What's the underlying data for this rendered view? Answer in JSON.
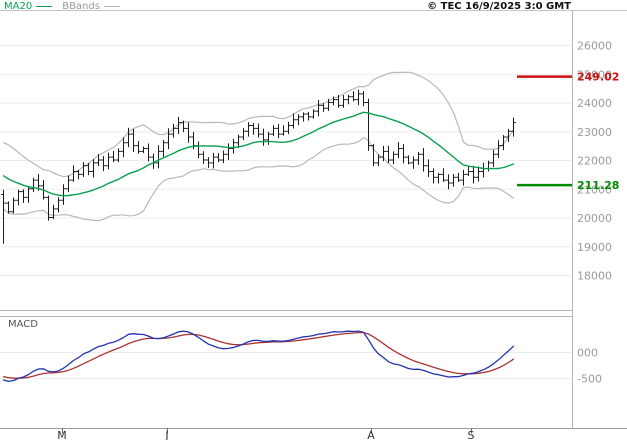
{
  "header": {
    "copyright": "© TEC 16/9/2025 3:0 GMT"
  },
  "legend": {
    "ma20": "MA20",
    "bbands": "BBands"
  },
  "colors": {
    "ma20": "#0aa04f",
    "bbands": "#b9b9b9",
    "legend_bbands": "#9a9a9a",
    "bars": "#1c1c1c",
    "resistance": "#cc1111",
    "support": "#008a00",
    "macd_line": "#2433b0",
    "macd_signal": "#aa3333",
    "axis_text": "#9a9a9a",
    "month_text": "#333333",
    "grid": "#ededed",
    "border": "#b5b5b5"
  },
  "chart_data": {
    "type": "candlestick",
    "title": "",
    "panels": [
      "price",
      "macd"
    ],
    "price": {
      "y_ticks": [
        26000,
        25000,
        24000,
        23000,
        22000,
        21000,
        20000,
        19000,
        18000
      ],
      "ylim": [
        16800,
        27200
      ],
      "overlays": [
        "MA20",
        "Bollinger Bands (20,2)"
      ],
      "closes": [
        20500,
        20200,
        20600,
        20900,
        20700,
        21000,
        21300,
        21100,
        20700,
        20000,
        20300,
        20600,
        21000,
        21300,
        21600,
        21500,
        21800,
        21600,
        21900,
        22000,
        21800,
        22100,
        22000,
        22300,
        22600,
        22900,
        22500,
        22300,
        22400,
        22100,
        21900,
        22300,
        22600,
        22900,
        23100,
        23300,
        23100,
        22800,
        22500,
        22200,
        22000,
        21900,
        22100,
        22000,
        22200,
        22400,
        22600,
        22800,
        23000,
        23200,
        23100,
        22900,
        22700,
        22900,
        23100,
        22900,
        23000,
        23200,
        23400,
        23500,
        23600,
        23500,
        23700,
        23900,
        23800,
        24000,
        24100,
        23900,
        24100,
        24200,
        24100,
        24300,
        24000,
        22500,
        21900,
        22100,
        22300,
        22000,
        22200,
        22400,
        22100,
        21900,
        22000,
        22200,
        21800,
        21600,
        21400,
        21500,
        21300,
        21200,
        21400,
        21300,
        21500,
        21600,
        21400,
        21600,
        21700,
        21900,
        22200,
        22500,
        22800,
        23000,
        23300
      ],
      "levels": [
        {
          "label": "249.02",
          "value": 24902,
          "role": "resistance",
          "color": "#cc1111"
        },
        {
          "label": "211.28",
          "value": 21128,
          "role": "support",
          "color": "#008a00"
        }
      ]
    },
    "macd": {
      "label": "MACD",
      "y_tick_labels": [
        "000",
        "-500"
      ],
      "y_tick_values": [
        0,
        -500
      ],
      "series": [
        "MACD(12,26)",
        "Signal(9)"
      ],
      "note": "indicator lines derived from closes"
    },
    "x_axis": {
      "month_labels": [
        "M",
        "J",
        "A",
        "S"
      ],
      "month_x": [
        62,
        167,
        371,
        471
      ]
    }
  }
}
